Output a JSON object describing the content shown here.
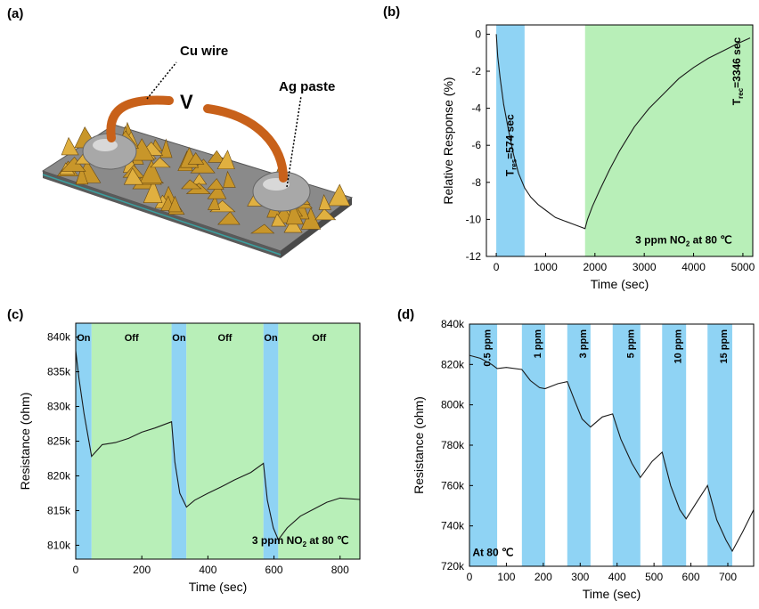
{
  "panel_a": {
    "label": "(a)",
    "cu_wire": "Cu wire",
    "ag_paste": "Ag paste",
    "v_label": "V",
    "colors": {
      "wire": "#d2691e",
      "blob": "#9a9a9a",
      "flakes": "#c8962a",
      "substrate": "#6e6e6e"
    }
  },
  "chart_data": [
    {
      "id": "b",
      "panel_label": "(b)",
      "type": "line",
      "xlabel": "Time (sec)",
      "ylabel": "Relative Response (%)",
      "xlim": [
        -200,
        5200
      ],
      "ylim": [
        -12,
        0.5
      ],
      "xticks": [
        0,
        1000,
        2000,
        3000,
        4000,
        5000
      ],
      "yticks": [
        0,
        -2,
        -4,
        -6,
        -8,
        -10,
        -12
      ],
      "xtick_labels": [
        "0",
        "1000",
        "2000",
        "3000",
        "4000",
        "5000"
      ],
      "ytick_labels": [
        "0",
        "-2",
        "-4",
        "-6",
        "-8",
        "-10",
        "-12"
      ],
      "bands": [
        {
          "x0": 0,
          "x1": 574,
          "color": "#8fd3f4"
        },
        {
          "x0": 1800,
          "x1": 5200,
          "color": "#b8efb8"
        }
      ],
      "annotations": [
        {
          "text": "T",
          "sub": "res",
          "rest": "=574 sec",
          "x": 350,
          "y": -6,
          "rotate": -90
        },
        {
          "text": "T",
          "sub": "rec",
          "rest": "=3346 sec",
          "x": 4950,
          "y": -2,
          "rotate": -90
        }
      ],
      "condition": {
        "pre": "3 ppm NO",
        "sub": "2",
        "post": " at 80 ℃",
        "x": 3800,
        "y": -11.3
      },
      "series": [
        {
          "values": [
            [
              0,
              0
            ],
            [
              30,
              -1.2
            ],
            [
              80,
              -2.4
            ],
            [
              150,
              -3.8
            ],
            [
              250,
              -5.2
            ],
            [
              350,
              -6.5
            ],
            [
              450,
              -7.5
            ],
            [
              574,
              -8.3
            ],
            [
              700,
              -8.8
            ],
            [
              850,
              -9.2
            ],
            [
              1000,
              -9.5
            ],
            [
              1200,
              -9.9
            ],
            [
              1400,
              -10.1
            ],
            [
              1600,
              -10.3
            ],
            [
              1800,
              -10.5
            ],
            [
              1850,
              -10.0
            ],
            [
              1950,
              -9.3
            ],
            [
              2100,
              -8.4
            ],
            [
              2300,
              -7.3
            ],
            [
              2500,
              -6.3
            ],
            [
              2800,
              -5.0
            ],
            [
              3100,
              -4.0
            ],
            [
              3400,
              -3.2
            ],
            [
              3700,
              -2.4
            ],
            [
              4000,
              -1.8
            ],
            [
              4300,
              -1.3
            ],
            [
              4600,
              -0.9
            ],
            [
              4900,
              -0.5
            ],
            [
              5146,
              -0.2
            ]
          ]
        }
      ]
    },
    {
      "id": "c",
      "panel_label": "(c)",
      "type": "line",
      "xlabel": "Time (sec)",
      "ylabel": "Resistance (ohm)",
      "xlim": [
        0,
        860
      ],
      "ylim": [
        808000,
        842000
      ],
      "xticks": [
        0,
        200,
        400,
        600,
        800
      ],
      "yticks": [
        810000,
        815000,
        820000,
        825000,
        830000,
        835000,
        840000
      ],
      "xtick_labels": [
        "0",
        "200",
        "400",
        "600",
        "800"
      ],
      "ytick_labels": [
        "810k",
        "815k",
        "820k",
        "825k",
        "830k",
        "835k",
        "840k"
      ],
      "bands": [
        {
          "x0": 0,
          "x1": 48,
          "color": "#8fd3f4",
          "label": "On"
        },
        {
          "x0": 48,
          "x1": 290,
          "color": "#b8efb8",
          "label": "Off"
        },
        {
          "x0": 290,
          "x1": 335,
          "color": "#8fd3f4",
          "label": "On"
        },
        {
          "x0": 335,
          "x1": 568,
          "color": "#b8efb8",
          "label": "Off"
        },
        {
          "x0": 568,
          "x1": 613,
          "color": "#8fd3f4",
          "label": "On"
        },
        {
          "x0": 613,
          "x1": 860,
          "color": "#b8efb8",
          "label": "Off"
        }
      ],
      "condition": {
        "pre": "3 ppm NO",
        "sub": "2",
        "post": " at 80 ℃",
        "x": 680,
        "y": 810200
      },
      "series": [
        {
          "values": [
            [
              0,
              838000
            ],
            [
              10,
              834000
            ],
            [
              25,
              829000
            ],
            [
              40,
              825000
            ],
            [
              48,
              822800
            ],
            [
              80,
              824500
            ],
            [
              120,
              824800
            ],
            [
              160,
              825400
            ],
            [
              200,
              826300
            ],
            [
              240,
              826900
            ],
            [
              290,
              827800
            ],
            [
              300,
              822000
            ],
            [
              315,
              817500
            ],
            [
              335,
              815500
            ],
            [
              360,
              816500
            ],
            [
              400,
              817500
            ],
            [
              440,
              818400
            ],
            [
              480,
              819400
            ],
            [
              530,
              820500
            ],
            [
              568,
              821800
            ],
            [
              580,
              816500
            ],
            [
              598,
              812500
            ],
            [
              613,
              810800
            ],
            [
              640,
              812500
            ],
            [
              680,
              814200
            ],
            [
              720,
              815200
            ],
            [
              760,
              816200
            ],
            [
              800,
              816800
            ],
            [
              860,
              816600
            ]
          ]
        }
      ]
    },
    {
      "id": "d",
      "panel_label": "(d)",
      "type": "line",
      "xlabel": "Time (sec)",
      "ylabel": "Resistance (ohm)",
      "xlim": [
        0,
        770
      ],
      "ylim": [
        720000,
        840000
      ],
      "xticks": [
        0,
        100,
        200,
        300,
        400,
        500,
        600,
        700
      ],
      "yticks": [
        720000,
        740000,
        760000,
        780000,
        800000,
        820000,
        840000
      ],
      "xtick_labels": [
        "0",
        "100",
        "200",
        "300",
        "400",
        "500",
        "600",
        "700"
      ],
      "ytick_labels": [
        "720k",
        "740k",
        "760k",
        "780k",
        "800k",
        "820k",
        "840k"
      ],
      "bands": [
        {
          "x0": 0,
          "x1": 75,
          "color": "#8fd3f4",
          "label": "0.5 ppm"
        },
        {
          "x0": 142,
          "x1": 205,
          "color": "#8fd3f4",
          "label": "1 ppm"
        },
        {
          "x0": 265,
          "x1": 328,
          "color": "#8fd3f4",
          "label": "3 ppm"
        },
        {
          "x0": 388,
          "x1": 463,
          "color": "#8fd3f4",
          "label": "5 ppm"
        },
        {
          "x0": 522,
          "x1": 587,
          "color": "#8fd3f4",
          "label": "10 ppm"
        },
        {
          "x0": 645,
          "x1": 712,
          "color": "#8fd3f4",
          "label": "15 ppm"
        }
      ],
      "condition": {
        "pre": "At 80 ℃",
        "sub": "",
        "post": "",
        "x": 8,
        "y": 725000
      },
      "series": [
        {
          "values": [
            [
              0,
              824500
            ],
            [
              30,
              823000
            ],
            [
              60,
              820000
            ],
            [
              75,
              818000
            ],
            [
              100,
              818500
            ],
            [
              142,
              817500
            ],
            [
              165,
              812000
            ],
            [
              190,
              808500
            ],
            [
              205,
              808000
            ],
            [
              240,
              810500
            ],
            [
              265,
              811500
            ],
            [
              285,
              802000
            ],
            [
              305,
              793000
            ],
            [
              328,
              789000
            ],
            [
              360,
              794000
            ],
            [
              388,
              795500
            ],
            [
              410,
              783000
            ],
            [
              440,
              771000
            ],
            [
              463,
              764000
            ],
            [
              495,
              772000
            ],
            [
              522,
              776500
            ],
            [
              545,
              760000
            ],
            [
              570,
              748000
            ],
            [
              587,
              743500
            ],
            [
              620,
              753000
            ],
            [
              645,
              760000
            ],
            [
              670,
              743000
            ],
            [
              695,
              733000
            ],
            [
              712,
              727500
            ],
            [
              740,
              737000
            ],
            [
              770,
              748000
            ]
          ]
        }
      ]
    }
  ]
}
